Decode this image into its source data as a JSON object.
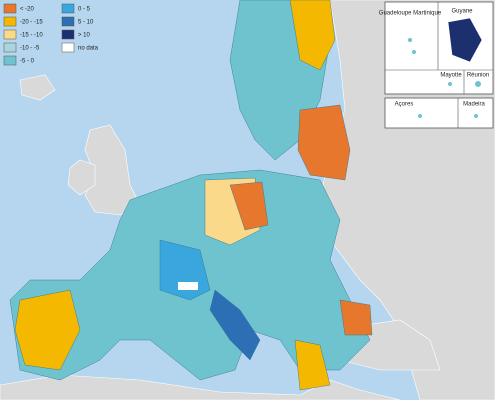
{
  "legend": {
    "items": [
      {
        "label": "< -20",
        "color": "#e8772e"
      },
      {
        "label": "-20 - -15",
        "color": "#f5b800"
      },
      {
        "label": "-15 - -10",
        "color": "#fad98a"
      },
      {
        "label": "-10 - -5",
        "color": "#a9d6dc"
      },
      {
        "label": "-5 - 0",
        "color": "#6ec3cf"
      },
      {
        "label": "0 - 5",
        "color": "#39a7de"
      },
      {
        "label": "5 - 10",
        "color": "#2d6fb5"
      },
      {
        "label": "> 10",
        "color": "#1c2f6e"
      },
      {
        "label": "no data",
        "color": "#ffffff"
      }
    ]
  },
  "insets": {
    "guadeloupe_martinique": "Guadeloupe Martinique",
    "guyane": "Guyane",
    "mayotte": "Mayotte",
    "reunion": "Réunion",
    "acores": "Açores",
    "madeira": "Madeira"
  }
}
